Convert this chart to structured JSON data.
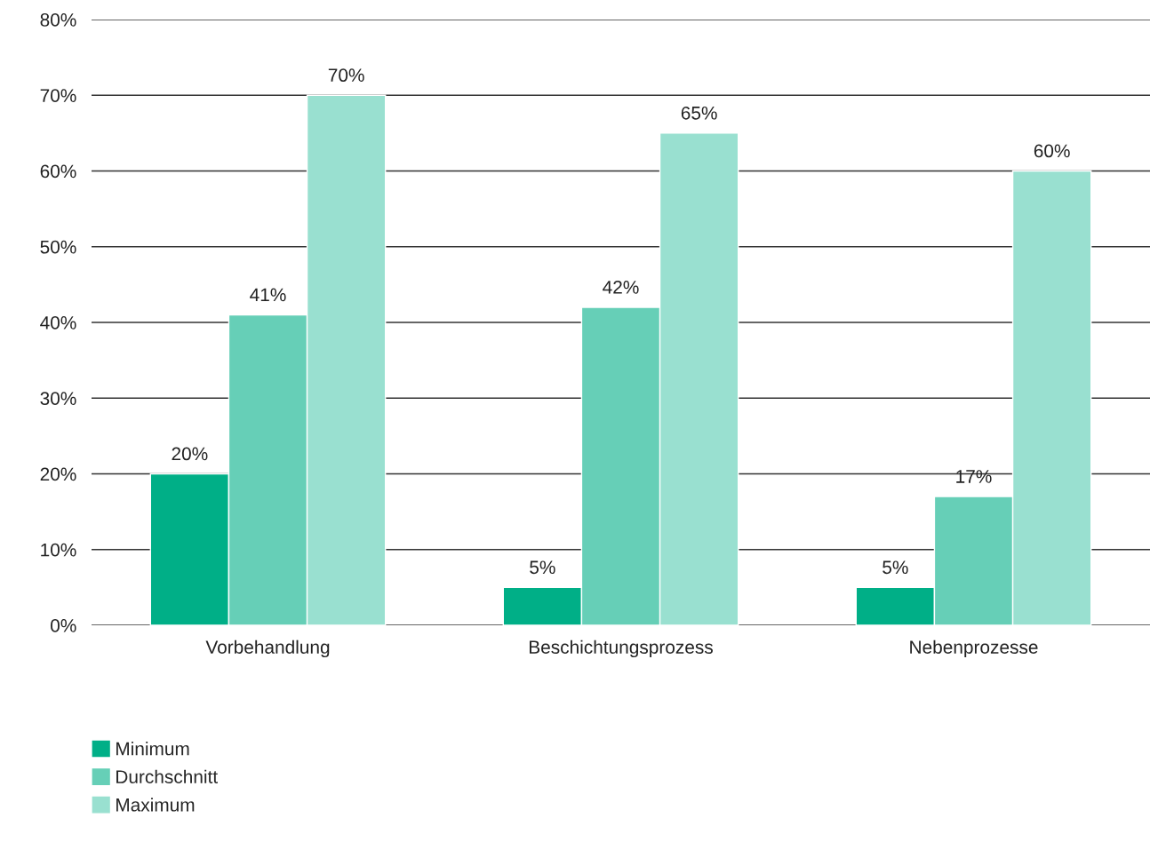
{
  "chart_data": {
    "type": "bar",
    "categories": [
      "Vorbehandlung",
      "Beschichtungsprozess",
      "Nebenprozesse"
    ],
    "series": [
      {
        "name": "Minimum",
        "color": "#00af87",
        "values": [
          20,
          5,
          5
        ],
        "value_labels": [
          "20%",
          "5%",
          "5%"
        ]
      },
      {
        "name": "Durchschnitt",
        "color": "#66cfb7",
        "values": [
          41,
          42,
          17
        ],
        "value_labels": [
          "41%",
          "42%",
          "17%"
        ]
      },
      {
        "name": "Maximum",
        "color": "#99e0d0",
        "values": [
          70,
          65,
          60
        ],
        "value_labels": [
          "70%",
          "65%",
          "60%"
        ]
      }
    ],
    "ylim": [
      0,
      80
    ],
    "yticks": [
      {
        "value": 0,
        "label": "0%"
      },
      {
        "value": 10,
        "label": "10%"
      },
      {
        "value": 20,
        "label": "20%"
      },
      {
        "value": 30,
        "label": "30%"
      },
      {
        "value": 40,
        "label": "40%"
      },
      {
        "value": 50,
        "label": "50%"
      },
      {
        "value": 60,
        "label": "60%"
      },
      {
        "value": 70,
        "label": "70%"
      },
      {
        "value": 80,
        "label": "80%"
      }
    ],
    "grid": "y",
    "legend": "bottom left"
  }
}
